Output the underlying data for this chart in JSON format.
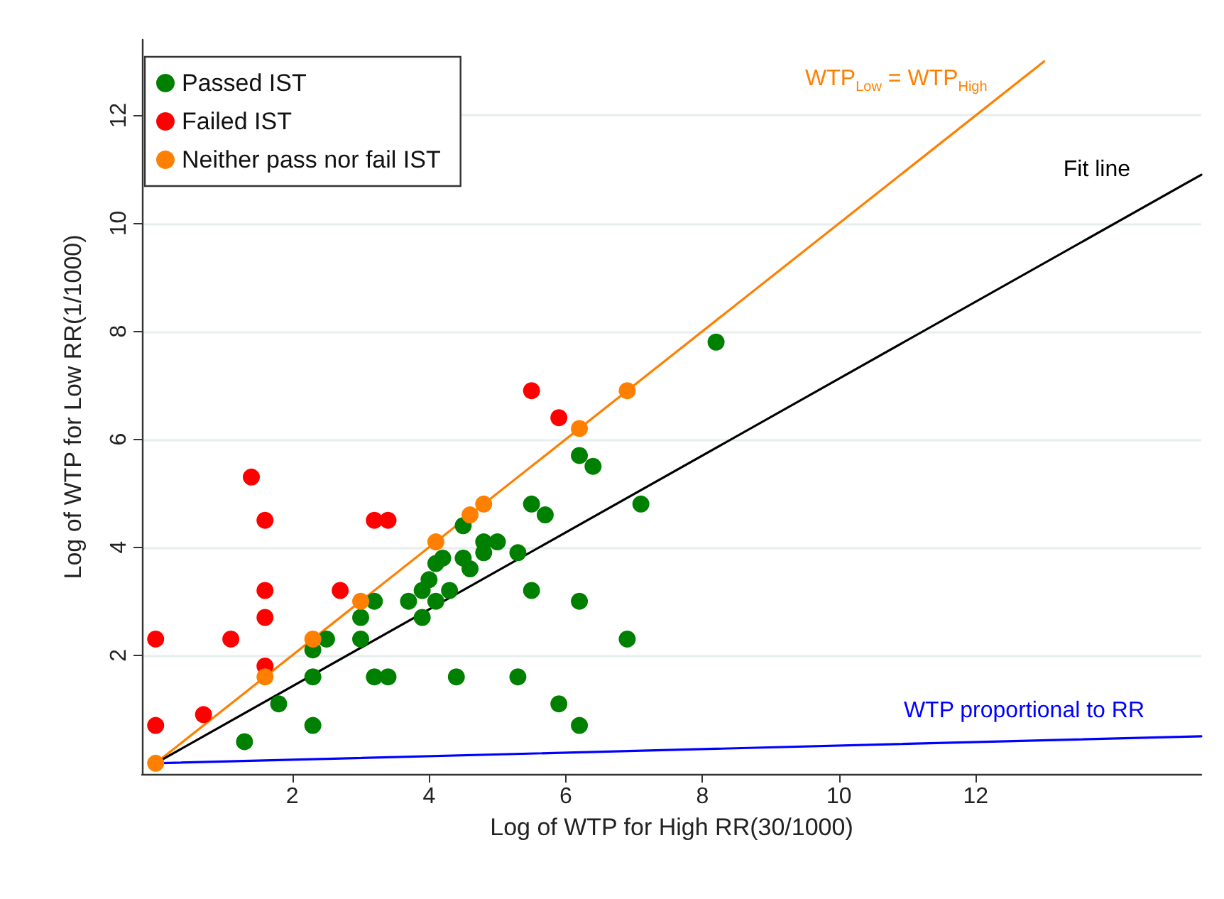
{
  "chart_data": {
    "type": "scatter",
    "xlabel": "Log of WTP for High RR(30/1000)",
    "ylabel": "Log of WTP for Low RR(1/1000)",
    "xlim": [
      -0.2,
      15.3
    ],
    "ylim": [
      -0.2,
      13.4
    ],
    "xticks": [
      2,
      4,
      6,
      8,
      10,
      12
    ],
    "yticks": [
      2,
      4,
      6,
      8,
      10,
      12
    ],
    "grid": "y",
    "legend": "top left",
    "marker": "circle",
    "series": [
      {
        "name": "Passed IST",
        "color": "#008000",
        "x": [
          1.3,
          1.8,
          2.3,
          2.3,
          2.3,
          2.5,
          3.0,
          3.0,
          3.2,
          3.2,
          3.4,
          3.7,
          3.9,
          3.9,
          4.0,
          4.1,
          4.1,
          4.2,
          4.3,
          4.4,
          4.5,
          4.5,
          4.6,
          4.8,
          4.8,
          5.0,
          5.3,
          5.3,
          5.5,
          5.5,
          5.7,
          5.9,
          6.2,
          6.2,
          6.2,
          6.4,
          6.9,
          7.1,
          8.2
        ],
        "values": [
          0.4,
          1.1,
          0.7,
          1.6,
          2.1,
          2.3,
          2.3,
          2.7,
          3.0,
          1.6,
          1.6,
          3.0,
          2.7,
          3.2,
          3.4,
          3.0,
          3.7,
          3.8,
          3.2,
          1.6,
          3.8,
          4.4,
          3.6,
          3.9,
          4.1,
          4.1,
          3.9,
          1.6,
          3.2,
          4.8,
          4.6,
          1.1,
          0.7,
          3.0,
          5.7,
          5.5,
          2.3,
          4.8,
          7.8
        ]
      },
      {
        "name": "Failed IST",
        "color": "#ff0000",
        "x": [
          0,
          0,
          0.7,
          1.1,
          1.4,
          1.6,
          1.6,
          1.6,
          1.6,
          2.7,
          3.2,
          3.4,
          5.5,
          5.9
        ],
        "values": [
          2.3,
          0.7,
          0.9,
          2.3,
          5.3,
          4.5,
          3.2,
          2.7,
          1.8,
          3.2,
          4.5,
          4.5,
          6.9,
          6.4
        ]
      },
      {
        "name": "Neither pass nor fail IST",
        "color": "#ff8000",
        "x": [
          0,
          1.6,
          2.3,
          3.0,
          4.1,
          4.6,
          4.8,
          6.2,
          6.9
        ],
        "values": [
          0,
          1.6,
          2.3,
          3.0,
          4.1,
          4.6,
          4.8,
          6.2,
          6.9
        ]
      },
      {
        "type": "line",
        "name": "WTP$_{Low}$ = WTP$_{High}$",
        "color": "#ff8000",
        "marker": "none",
        "x": [
          0,
          13
        ],
        "values": [
          0,
          13
        ]
      },
      {
        "type": "line",
        "name": "Fit line",
        "color": "#000000",
        "marker": "none",
        "x": [
          0,
          15.3
        ],
        "values": [
          0,
          10.9
        ]
      },
      {
        "type": "line",
        "name": "WTP proportional to RR",
        "color": "#0000ff",
        "marker": "none",
        "x": [
          0,
          15.3
        ],
        "values": [
          0,
          0.5
        ]
      }
    ]
  }
}
